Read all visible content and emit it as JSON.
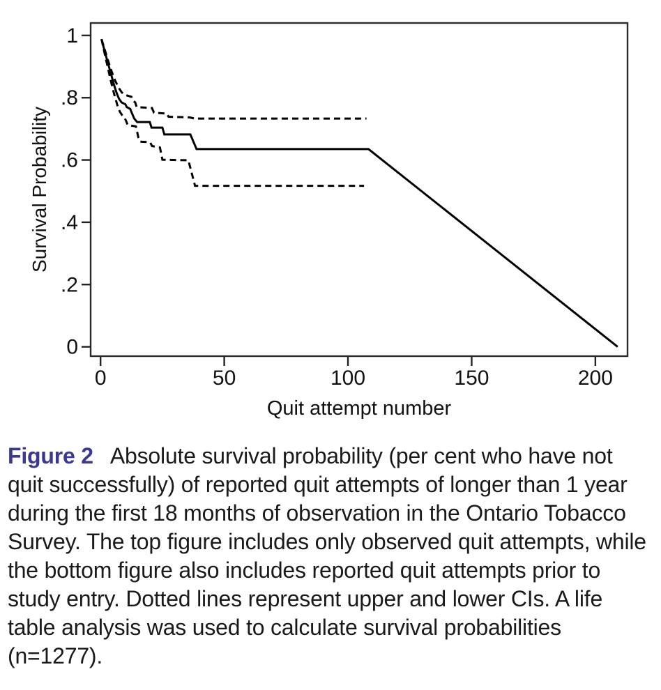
{
  "caption": {
    "label": "Figure 2",
    "label_color": "#3c3894",
    "text_color": "#1a1a1a",
    "text": "Absolute survival probability (per cent who have not quit successfully) of reported quit attempts of longer than 1 year during the first 18 months of observation in the Ontario Tobacco Survey. The top figure includes only observed quit attempts, while the bottom figure also includes reported quit attempts prior to study entry. Dotted lines represent upper and lower CIs. A life table analysis was used to calculate survival probabilities (n=1277)."
  },
  "chart_data": {
    "type": "line",
    "title": "",
    "xlabel": "Quit attempt number",
    "ylabel": "Survival Probability",
    "xlim": [
      -4,
      213
    ],
    "ylim": [
      -0.03,
      1.04
    ],
    "xticks": [
      0,
      50,
      100,
      150,
      200
    ],
    "xtick_labels": [
      "0",
      "50",
      "100",
      "150",
      "200"
    ],
    "yticks": [
      0,
      0.2,
      0.4,
      0.6,
      0.8,
      1
    ],
    "ytick_labels": [
      "0",
      ".2",
      ".4",
      ".6",
      ".8",
      "1"
    ],
    "grid": false,
    "legend": "none",
    "line_color": "#000000",
    "frame_color": "#2b2b2b",
    "series": [
      {
        "name": "survival-estimate",
        "label": "Survival estimate",
        "style": "solid",
        "points": [
          [
            0.4,
            0.988
          ],
          [
            1.5,
            0.955
          ],
          [
            2.5,
            0.925
          ],
          [
            3.5,
            0.897
          ],
          [
            4.5,
            0.868
          ],
          [
            5.5,
            0.84
          ],
          [
            6.5,
            0.815
          ],
          [
            7.5,
            0.796
          ],
          [
            8.5,
            0.785
          ],
          [
            10,
            0.779
          ],
          [
            10.6,
            0.77
          ],
          [
            12,
            0.764
          ],
          [
            12.7,
            0.75
          ],
          [
            13.6,
            0.733
          ],
          [
            14.8,
            0.722
          ],
          [
            19.9,
            0.722
          ],
          [
            20.6,
            0.704
          ],
          [
            25,
            0.704
          ],
          [
            25.8,
            0.682
          ],
          [
            36.3,
            0.682
          ],
          [
            38.8,
            0.635
          ],
          [
            108.3,
            0.635
          ],
          [
            209,
            0
          ]
        ]
      },
      {
        "name": "upper-ci",
        "label": "Upper CI",
        "style": "dashed",
        "points": [
          [
            0.4,
            0.988
          ],
          [
            1.5,
            0.96
          ],
          [
            2.5,
            0.933
          ],
          [
            3.5,
            0.908
          ],
          [
            4.5,
            0.884
          ],
          [
            5.5,
            0.862
          ],
          [
            6.5,
            0.845
          ],
          [
            7.5,
            0.83
          ],
          [
            8.5,
            0.818
          ],
          [
            9.5,
            0.81
          ],
          [
            12.5,
            0.803
          ],
          [
            13.2,
            0.79
          ],
          [
            14,
            0.785
          ],
          [
            14.6,
            0.77
          ],
          [
            20.8,
            0.767
          ],
          [
            21.6,
            0.752
          ],
          [
            26.8,
            0.749
          ],
          [
            27.5,
            0.739
          ],
          [
            36,
            0.737
          ],
          [
            38,
            0.733
          ],
          [
            107.5,
            0.733
          ]
        ]
      },
      {
        "name": "lower-ci",
        "label": "Lower CI",
        "style": "dashed",
        "points": [
          [
            0.4,
            0.988
          ],
          [
            1.5,
            0.948
          ],
          [
            2.5,
            0.912
          ],
          [
            3.5,
            0.877
          ],
          [
            4.5,
            0.843
          ],
          [
            5.5,
            0.812
          ],
          [
            6.3,
            0.79
          ],
          [
            7,
            0.771
          ],
          [
            7.8,
            0.755
          ],
          [
            8.7,
            0.744
          ],
          [
            9.7,
            0.736
          ],
          [
            10.4,
            0.724
          ],
          [
            11,
            0.712
          ],
          [
            14.3,
            0.708
          ],
          [
            15.3,
            0.672
          ],
          [
            16,
            0.659
          ],
          [
            20,
            0.657
          ],
          [
            20.8,
            0.645
          ],
          [
            24,
            0.64
          ],
          [
            25,
            0.601
          ],
          [
            35.5,
            0.599
          ],
          [
            38.2,
            0.517
          ],
          [
            106.5,
            0.517
          ]
        ]
      }
    ]
  }
}
